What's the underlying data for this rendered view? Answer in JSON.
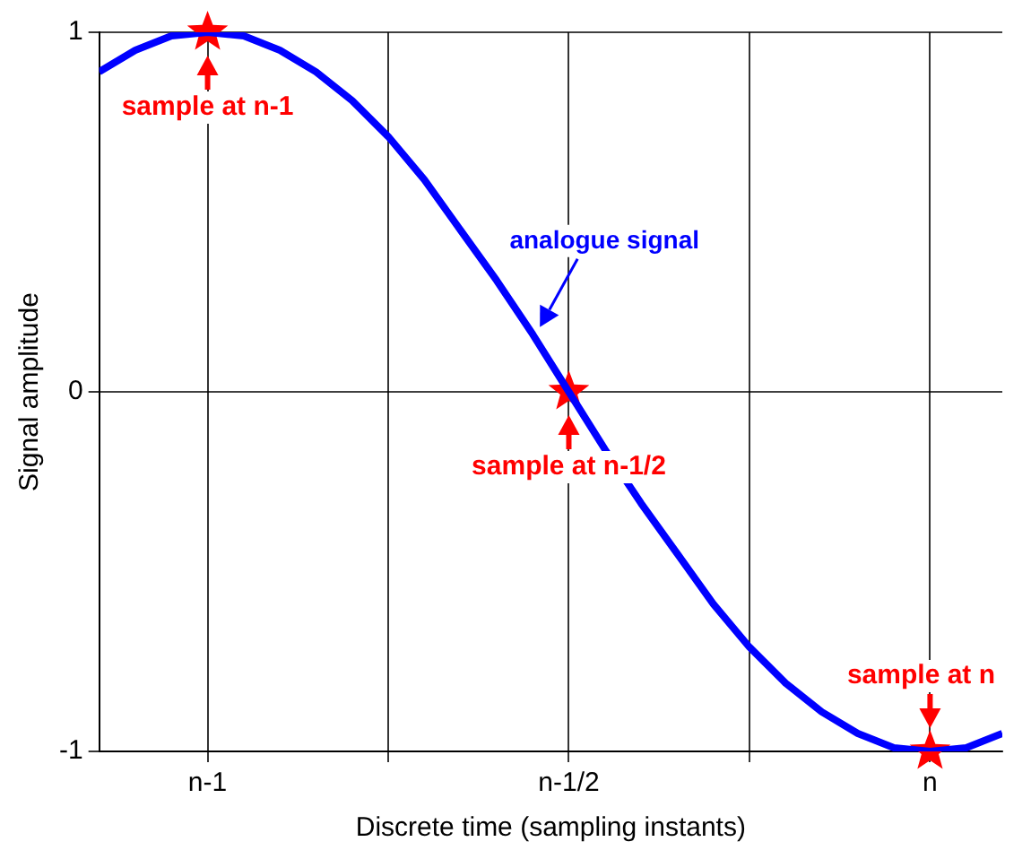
{
  "chart_data": {
    "type": "line",
    "xlabel": "Discrete time (sampling instants)",
    "ylabel": "Signal amplitude",
    "categories": [
      null,
      null,
      null,
      "n-1",
      null,
      null,
      null,
      null,
      null,
      null,
      null,
      null,
      null,
      "n-1/2",
      null,
      null,
      null,
      null,
      null,
      null,
      null,
      null,
      null,
      "n",
      null,
      null
    ],
    "ylim": [
      -1,
      1
    ],
    "yticks": [
      -1,
      0,
      1
    ],
    "grid": true,
    "legend": false,
    "series": [
      {
        "name": "analogue signal",
        "color": "#0000ff",
        "marker": "none",
        "line_style": "solid",
        "values": [
          0.89,
          0.95,
          0.99,
          1,
          0.99,
          0.95,
          0.89,
          0.81,
          0.71,
          0.59,
          0.45,
          0.31,
          0.16,
          0,
          -0.16,
          -0.31,
          -0.45,
          -0.59,
          -0.71,
          -0.81,
          -0.89,
          -0.95,
          -0.99,
          -1,
          -0.99,
          -0.95
        ]
      },
      {
        "type": "scatter",
        "color": "#ff0000",
        "marker": "star",
        "x": [
          "n-1",
          "n-1/2",
          "n"
        ],
        "values": [
          1,
          0,
          -1
        ]
      }
    ],
    "annotations": [
      {
        "text": "sample at n-1",
        "x": "n-1",
        "y": 1
      },
      {
        "text": "sample at n-1/2",
        "x": "n-1/2",
        "y": 0
      },
      {
        "text": "sample at n",
        "x": "n",
        "y": -1
      }
    ]
  }
}
